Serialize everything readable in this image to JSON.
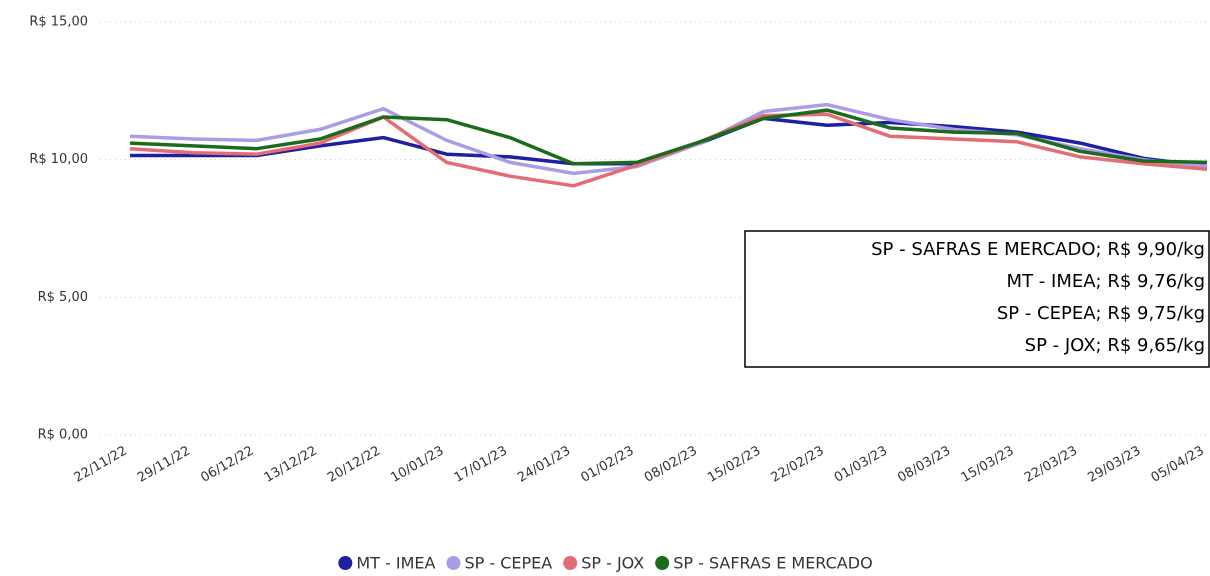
{
  "chart_data": {
    "type": "line",
    "categories": [
      "22/11/22",
      "29/11/22",
      "06/12/22",
      "13/12/22",
      "20/12/22",
      "10/01/23",
      "17/01/23",
      "24/01/23",
      "01/02/23",
      "08/02/23",
      "15/02/23",
      "22/02/23",
      "01/03/23",
      "08/03/23",
      "15/03/23",
      "22/03/23",
      "29/03/23",
      "05/04/23"
    ],
    "series": [
      {
        "name": "MT - IMEA",
        "color": "#1f1fa3",
        "values": [
          10.15,
          10.15,
          10.15,
          10.5,
          10.8,
          10.2,
          10.1,
          9.85,
          9.85,
          10.6,
          11.5,
          11.25,
          11.35,
          11.2,
          11.0,
          10.6,
          10.05,
          9.76
        ]
      },
      {
        "name": "SP - CEPEA",
        "color": "#ab9ce6",
        "values": [
          10.85,
          10.75,
          10.7,
          11.1,
          11.85,
          10.7,
          9.9,
          9.5,
          9.75,
          10.6,
          11.75,
          12.0,
          11.45,
          11.1,
          10.9,
          10.4,
          10.0,
          9.75
        ]
      },
      {
        "name": "SP - JOX",
        "color": "#e46c74",
        "values": [
          10.4,
          10.25,
          10.2,
          10.6,
          11.55,
          9.9,
          9.4,
          9.05,
          9.8,
          10.65,
          11.6,
          11.65,
          10.85,
          10.75,
          10.65,
          10.1,
          9.85,
          9.65
        ]
      },
      {
        "name": "SP - SAFRAS E MERCADO",
        "color": "#1c6b1c",
        "values": [
          10.6,
          10.5,
          10.4,
          10.75,
          11.55,
          11.45,
          10.8,
          9.85,
          9.9,
          10.65,
          11.5,
          11.8,
          11.15,
          11.0,
          10.95,
          10.3,
          9.95,
          9.9
        ]
      }
    ],
    "ylim": [
      0,
      15
    ],
    "yticks": [
      {
        "value": 0,
        "label": "R$ 0,00"
      },
      {
        "value": 5,
        "label": "R$ 5,00"
      },
      {
        "value": 10,
        "label": "R$ 10,00"
      },
      {
        "value": 15,
        "label": "R$ 15,00"
      }
    ],
    "grid": true,
    "legend": "bottom",
    "annotations": [
      "SP - SAFRAS E MERCADO; R$ 9,90/kg",
      "MT - IMEA; R$ 9,76/kg",
      "SP - CEPEA; R$ 9,75/kg",
      "SP - JOX; R$ 9,65/kg"
    ]
  }
}
